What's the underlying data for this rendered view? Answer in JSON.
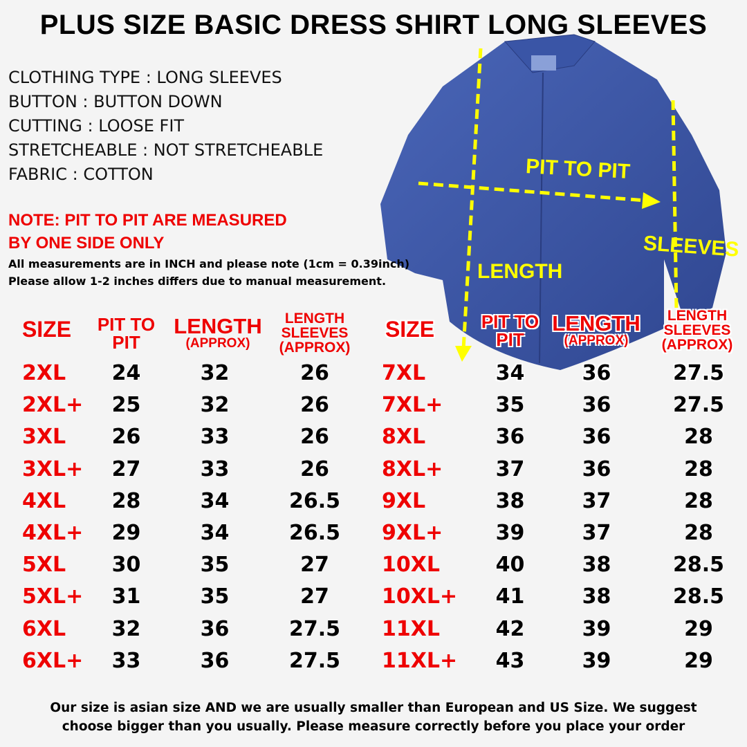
{
  "title": "PLUS SIZE BASIC DRESS SHIRT LONG SLEEVES",
  "specs": [
    "CLOTHING TYPE : LONG SLEEVES",
    "BUTTON : BUTTON DOWN",
    "CUTTING : LOOSE FIT",
    "STRETCHEABLE : NOT STRETCHEABLE",
    "FABRIC :  COTTON"
  ],
  "note": [
    "NOTE: PIT TO PIT ARE MEASURED",
    "BY ONE SIDE ONLY"
  ],
  "info": [
    "All measurements are in INCH and please note (1cm = 0.39inch)",
    "Please allow 1-2 inches differs due to manual measurement."
  ],
  "diagram_labels": {
    "pit": "PIT TO PIT",
    "length": "LENGTH",
    "sleeves": "SLEEVES"
  },
  "headers": {
    "size": "SIZE",
    "pit_1": "PIT TO",
    "pit_2": "PIT",
    "length": "LENGTH",
    "length_sub": "(APPROX)",
    "sleeves_1": "LENGTH",
    "sleeves_2": "SLEEVES",
    "sleeves_3": "(APPROX)"
  },
  "table_left": [
    {
      "size": "2XL",
      "pit": "24",
      "length": "32",
      "sleeves": "26"
    },
    {
      "size": "2XL+",
      "pit": "25",
      "length": "32",
      "sleeves": "26"
    },
    {
      "size": "3XL",
      "pit": "26",
      "length": "33",
      "sleeves": "26"
    },
    {
      "size": "3XL+",
      "pit": "27",
      "length": "33",
      "sleeves": "26"
    },
    {
      "size": "4XL",
      "pit": "28",
      "length": "34",
      "sleeves": "26.5"
    },
    {
      "size": "4XL+",
      "pit": "29",
      "length": "34",
      "sleeves": "26.5"
    },
    {
      "size": "5XL",
      "pit": "30",
      "length": "35",
      "sleeves": "27"
    },
    {
      "size": "5XL+",
      "pit": "31",
      "length": "35",
      "sleeves": "27"
    },
    {
      "size": "6XL",
      "pit": "32",
      "length": "36",
      "sleeves": "27.5"
    },
    {
      "size": "6XL+",
      "pit": "33",
      "length": "36",
      "sleeves": "27.5"
    }
  ],
  "table_right": [
    {
      "size": "7XL",
      "pit": "34",
      "length": "36",
      "sleeves": "27.5"
    },
    {
      "size": "7XL+",
      "pit": "35",
      "length": "36",
      "sleeves": "27.5"
    },
    {
      "size": "8XL",
      "pit": "36",
      "length": "36",
      "sleeves": "28"
    },
    {
      "size": "8XL+",
      "pit": "37",
      "length": "36",
      "sleeves": "28"
    },
    {
      "size": "9XL",
      "pit": "38",
      "length": "37",
      "sleeves": "28"
    },
    {
      "size": "9XL+",
      "pit": "39",
      "length": "37",
      "sleeves": "28"
    },
    {
      "size": "10XL",
      "pit": "40",
      "length": "38",
      "sleeves": "28.5"
    },
    {
      "size": "10XL+",
      "pit": "41",
      "length": "38",
      "sleeves": "28.5"
    },
    {
      "size": "11XL",
      "pit": "42",
      "length": "39",
      "sleeves": "29"
    },
    {
      "size": "11XL+",
      "pit": "43",
      "length": "39",
      "sleeves": "29"
    }
  ],
  "footer": [
    "Our size is asian size AND we are usually smaller than European and US Size. We suggest",
    "choose bigger than you usually. Please measure correctly before you place your order"
  ],
  "colors": {
    "accent_red": "#e00000",
    "shirt_blue": "#3d58a8",
    "arrow_yellow": "#ffff00"
  }
}
